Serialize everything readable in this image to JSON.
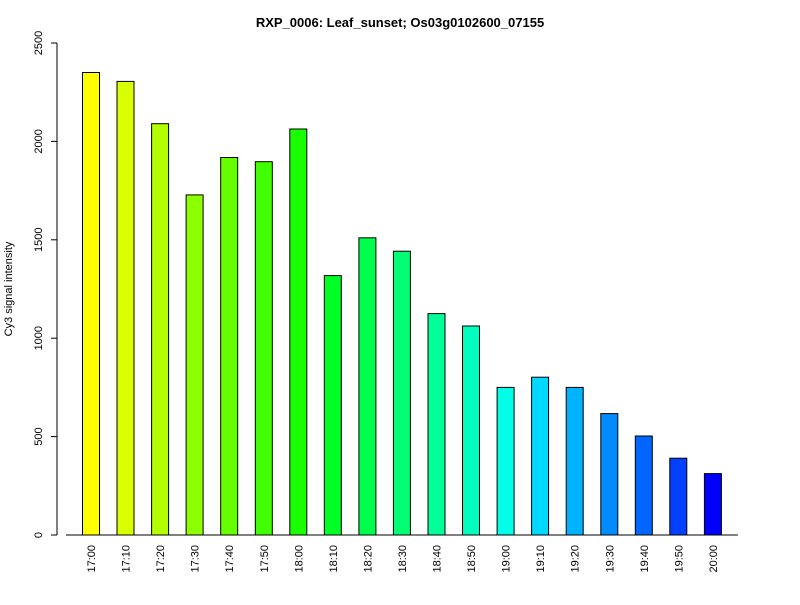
{
  "chart_data": {
    "type": "bar",
    "title": "RXP_0006: Leaf_sunset; Os03g0102600_07155",
    "xlabel": "",
    "ylabel": "Cy3 signal intensity",
    "ylim": [
      0,
      2500
    ],
    "yticks": [
      0,
      500,
      1000,
      1500,
      2000,
      2500
    ],
    "grid": false,
    "categories": [
      "17:00",
      "17:10",
      "17:20",
      "17:30",
      "17:40",
      "17:50",
      "18:00",
      "18:10",
      "18:20",
      "18:30",
      "18:40",
      "18:50",
      "19:00",
      "19:10",
      "19:20",
      "19:30",
      "19:40",
      "19:50",
      "20:00"
    ],
    "values": [
      2350,
      2305,
      2090,
      1728,
      1918,
      1897,
      2063,
      1318,
      1510,
      1442,
      1125,
      1062,
      750,
      802,
      750,
      617,
      503,
      390,
      312
    ],
    "colors": [
      "#ffff00",
      "#d9ff00",
      "#b3ff00",
      "#8cff00",
      "#66ff00",
      "#40ff00",
      "#19ff00",
      "#00ff26",
      "#00ff4d",
      "#00ff73",
      "#00ff99",
      "#00ffbf",
      "#00ffe6",
      "#00d9ff",
      "#00b3ff",
      "#008cff",
      "#0066ff",
      "#0040ff",
      "#0000ff"
    ]
  }
}
